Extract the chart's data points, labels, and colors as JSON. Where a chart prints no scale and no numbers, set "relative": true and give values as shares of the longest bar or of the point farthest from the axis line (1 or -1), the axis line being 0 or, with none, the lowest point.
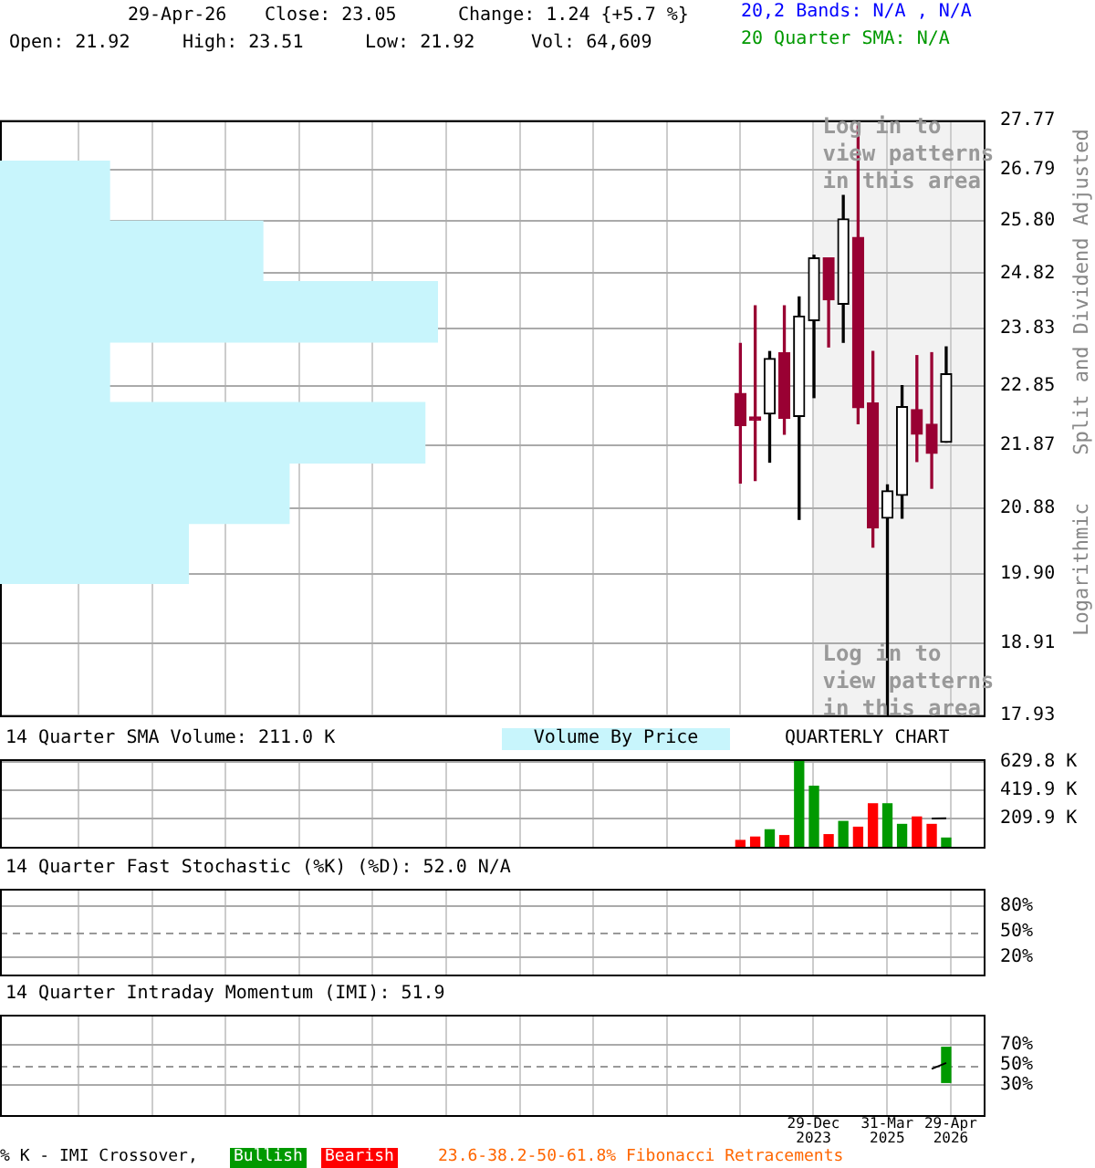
{
  "chart_data": [
    {
      "type": "candlestick",
      "x": [
        "2022-10",
        "2023-01",
        "2023-04",
        "2023-07",
        "2023-10",
        "2024-01",
        "2024-04",
        "2024-07",
        "2024-10",
        "2025-01",
        "2025-04",
        "2025-07",
        "2025-10",
        "2026-01",
        "2026-04"
      ],
      "ohlc": [
        [
          22.72,
          23.57,
          21.27,
          22.19
        ],
        [
          22.33,
          24.23,
          21.31,
          22.28
        ],
        [
          22.38,
          23.43,
          21.6,
          23.31
        ],
        [
          23.41,
          24.23,
          22.05,
          22.31
        ],
        [
          22.34,
          24.39,
          20.71,
          24.05
        ],
        [
          23.97,
          25.15,
          22.65,
          25.1
        ],
        [
          25.1,
          25.1,
          23.51,
          24.34
        ],
        [
          24.26,
          26.28,
          23.59,
          25.83
        ],
        [
          25.48,
          27.66,
          22.22,
          22.48
        ],
        [
          22.56,
          23.43,
          20.29,
          20.58
        ],
        [
          20.73,
          21.24,
          17.93,
          21.15
        ],
        [
          21.08,
          22.85,
          20.73,
          22.5
        ],
        [
          22.45,
          23.36,
          21.61,
          22.05
        ],
        [
          22.21,
          23.41,
          21.19,
          21.74
        ],
        [
          21.92,
          23.51,
          21.92,
          23.05
        ]
      ],
      "colors": [
        "#990033",
        "#990033",
        "#000000",
        "#990033",
        "#000000",
        "#000000",
        "#990033",
        "#000000",
        "#990033",
        "#990033",
        "#000000",
        "#000000",
        "#990033",
        "#990033",
        "#000000"
      ],
      "xlim": [
        "2010-03",
        "2026-12"
      ],
      "xticks": [
        {
          "value": "2011-06-30",
          "label": null
        },
        {
          "value": "2012-09-30",
          "label": null
        },
        {
          "value": "2013-12-31",
          "label": null
        },
        {
          "value": "2015-03-31",
          "label": null
        },
        {
          "value": "2016-06-30",
          "label": null
        },
        {
          "value": "2017-09-30",
          "label": null
        },
        {
          "value": "2018-12-31",
          "label": null
        },
        {
          "value": "2020-03-31",
          "label": null
        },
        {
          "value": "2021-06-30",
          "label": null
        },
        {
          "value": "2022-09-30",
          "label": null
        },
        {
          "value": "2023-12-29",
          "label": null
        },
        {
          "value": "2025-03-31",
          "label": null
        },
        {
          "value": "2026-04-29",
          "label": null
        }
      ],
      "ylim": [
        17.93,
        27.77
      ],
      "yticks": [
        17.93,
        18.91,
        {
          "value": 19.9,
          "label": "19.90"
        },
        20.88,
        21.87,
        22.85,
        23.83,
        24.82,
        {
          "value": 25.8,
          "label": "25.80"
        },
        26.79,
        27.77
      ],
      "log": "y",
      "grid": true,
      "tick_labels": "y",
      "ylabel": "Split and Dividend Adjusted",
      "bands": [
        {
          "axis": "x",
          "from": "2023-12-29",
          "to": "2026-12",
          "label": "Log in to view patterns in this area",
          "color": "#f2f2f2"
        }
      ],
      "annotations": [
        "29-Apr-26",
        "Close: 23.05",
        "Change: 1.24 {+5.7 %}",
        "Open: 21.92",
        "High: 23.51",
        "Low: 21.92",
        "Vol: 64,609",
        "20,2 Bands: N/A , N/A",
        "20 Quarter SMA: N/A",
        "Log in to view patterns in this area",
        "Logarithmic"
      ]
    },
    {
      "type": "bar",
      "orientation": "horizontal",
      "relative": true,
      "categories": [
        null,
        null,
        null,
        null,
        null,
        null,
        null
      ],
      "values": [
        0.25,
        0.6,
        1,
        0.25,
        0.97,
        0.66,
        0.43
      ],
      "color": "#c8f5fc"
    },
    {
      "type": "bar",
      "title": "14 Quarter SMA Volume: 211.0 K",
      "x": [
        "2022-10",
        "2023-01",
        "2023-04",
        "2023-07",
        "2023-10",
        "2024-01",
        "2024-04",
        "2024-07",
        "2024-10",
        "2025-01",
        "2025-04",
        "2025-07",
        "2025-10",
        "2026-01",
        "2026-04"
      ],
      "series": [
        {
          "type": "bar",
          "colors": [
            "#ff0000",
            "#ff0000",
            "#009900",
            "#ff0000",
            "#009900",
            "#009900",
            "#ff0000",
            "#009900",
            "#ff0000",
            "#ff0000",
            "#009900",
            "#009900",
            "#ff0000",
            "#ff0000",
            "#009900"
          ],
          "values": [
            47,
            72,
            126,
            83,
            640,
            449,
            90,
            188,
            145,
            319,
            319,
            166,
            221,
            166,
            64.6
          ]
        },
        {
          "type": "line",
          "color": "#000000",
          "values": [
            null,
            null,
            null,
            null,
            null,
            null,
            null,
            null,
            null,
            null,
            null,
            null,
            null,
            210,
            211.0
          ]
        }
      ],
      "xlim": [
        "2010-03",
        "2026-12"
      ],
      "xticks": [
        {
          "value": "2011-06-30",
          "label": null
        },
        {
          "value": "2012-09-30",
          "label": null
        },
        {
          "value": "2013-12-31",
          "label": null
        },
        {
          "value": "2015-03-31",
          "label": null
        },
        {
          "value": "2016-06-30",
          "label": null
        },
        {
          "value": "2017-09-30",
          "label": null
        },
        {
          "value": "2018-12-31",
          "label": null
        },
        {
          "value": "2020-03-31",
          "label": null
        },
        {
          "value": "2021-06-30",
          "label": null
        },
        {
          "value": "2022-09-30",
          "label": null
        },
        {
          "value": "2023-12-29",
          "label": null
        },
        {
          "value": "2025-03-31",
          "label": null
        },
        {
          "value": "2026-04-29",
          "label": null
        }
      ],
      "ylim": [
        0,
        650
      ],
      "yticks": [
        {
          "value": 209.9,
          "label": "209.9 K"
        },
        {
          "value": 419.9,
          "label": "419.9 K"
        },
        {
          "value": 629.8,
          "label": "629.8 K"
        }
      ],
      "grid": true,
      "tick_labels": "y",
      "annotations": [
        "Volume By Price",
        "QUARTERLY CHART"
      ]
    },
    {
      "type": "line",
      "title": "14 Quarter Fast Stochastic (%K) (%D): 52.0  N/A",
      "xlim": [
        "2010-03",
        "2026-12"
      ],
      "xticks": [
        {
          "value": "2011-06-30",
          "label": null
        },
        {
          "value": "2012-09-30",
          "label": null
        },
        {
          "value": "2013-12-31",
          "label": null
        },
        {
          "value": "2015-03-31",
          "label": null
        },
        {
          "value": "2016-06-30",
          "label": null
        },
        {
          "value": "2017-09-30",
          "label": null
        },
        {
          "value": "2018-12-31",
          "label": null
        },
        {
          "value": "2020-03-31",
          "label": null
        },
        {
          "value": "2021-06-30",
          "label": null
        },
        {
          "value": "2022-09-30",
          "label": null
        },
        {
          "value": "2023-12-29",
          "label": null
        },
        {
          "value": "2025-03-31",
          "label": null
        },
        {
          "value": "2026-04-29",
          "label": null
        }
      ],
      "ylim": [
        0,
        100
      ],
      "yticks": [
        {
          "value": 20,
          "label": "20%"
        },
        {
          "value": 50,
          "label": "50%"
        },
        {
          "value": 80,
          "label": "80%"
        }
      ],
      "grid": true,
      "tick_labels": "y",
      "ref_lines": [
        {
          "axis": "y",
          "value": 50,
          "color": "#999999",
          "line_style": "dashed"
        }
      ]
    },
    {
      "type": "bar",
      "title": "14 Quarter Intraday Momentum (IMI): 51.9",
      "series": [
        {
          "type": "bar",
          "color": "#009900",
          "x": [
            "2026-04"
          ],
          "values": [
            35
          ],
          "base": [
            32.5
          ]
        },
        {
          "type": "line",
          "color": "#000000",
          "x": [
            "2026-01",
            "2026-04"
          ],
          "values": [
            46,
            51.9
          ]
        }
      ],
      "xlim": [
        "2010-03",
        "2026-12"
      ],
      "xticks": [
        {
          "value": "2011-06-30",
          "label": null
        },
        {
          "value": "2012-09-30",
          "label": null
        },
        {
          "value": "2013-12-31",
          "label": null
        },
        {
          "value": "2015-03-31",
          "label": null
        },
        {
          "value": "2016-06-30",
          "label": null
        },
        {
          "value": "2017-09-30",
          "label": null
        },
        {
          "value": "2018-12-31",
          "label": null
        },
        {
          "value": "2020-03-31",
          "label": null
        },
        {
          "value": "2021-06-30",
          "label": null
        },
        {
          "value": "2022-09-30",
          "label": null
        },
        {
          "value": "2023-12-29",
          "label": "29-Dec 2023"
        },
        {
          "value": "2025-03-31",
          "label": "31-Mar 2025"
        },
        {
          "value": "2026-04-29",
          "label": "29-Apr 2026"
        }
      ],
      "ylim": [
        0,
        100
      ],
      "yticks": [
        {
          "value": 30,
          "label": "30%"
        },
        {
          "value": 50,
          "label": "50%"
        },
        {
          "value": 70,
          "label": "70%"
        }
      ],
      "grid": true,
      "ref_lines": [
        {
          "axis": "y",
          "value": 50,
          "color": "#999999",
          "line_style": "dashed"
        }
      ],
      "annotations": [
        "% K - IMI Crossover,",
        "Bullish",
        "Bearish",
        "23.6-38.2-50-61.8% Fibonacci Retracements"
      ]
    }
  ]
}
